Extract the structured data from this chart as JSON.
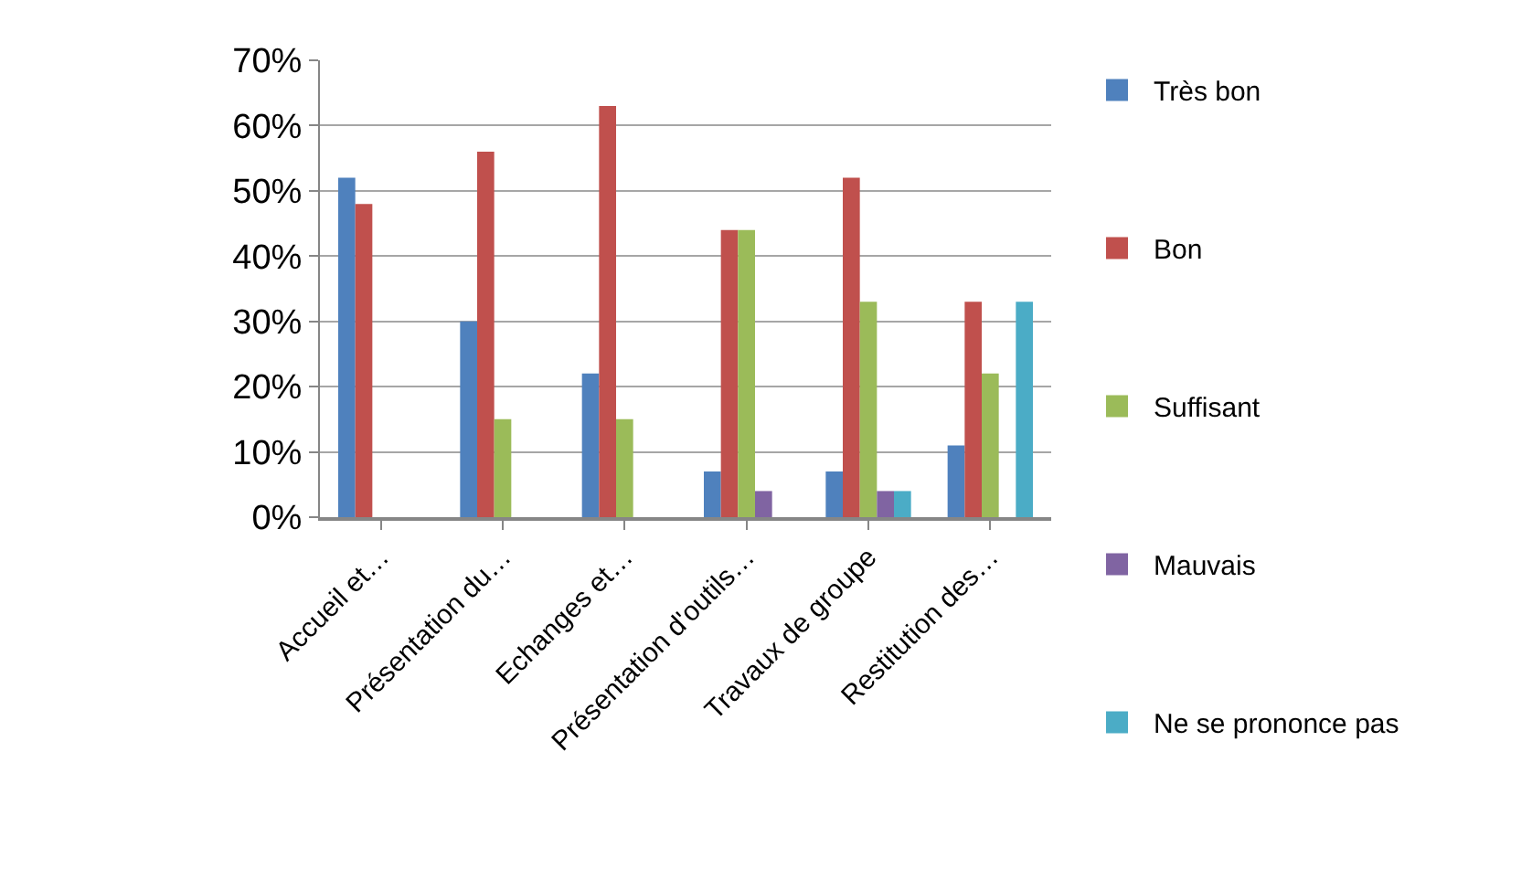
{
  "chart_data": {
    "type": "bar",
    "categories": [
      "Accueil et…",
      "Présentation du…",
      "Echanges et…",
      "Présentation d'outils…",
      "Travaux de groupe",
      "Restitution des…"
    ],
    "series": [
      {
        "name": "Très bon",
        "color": "#4f81bd",
        "values": [
          52,
          30,
          22,
          7,
          7,
          11
        ]
      },
      {
        "name": "Bon",
        "color": "#c0504d",
        "values": [
          48,
          56,
          63,
          44,
          52,
          33
        ]
      },
      {
        "name": "Suffisant",
        "color": "#9bbb59",
        "values": [
          0,
          15,
          15,
          44,
          33,
          22
        ]
      },
      {
        "name": "Mauvais",
        "color": "#8064a2",
        "values": [
          0,
          0,
          0,
          4,
          4,
          0
        ]
      },
      {
        "name": "Ne se prononce pas",
        "color": "#4bacc6",
        "values": [
          0,
          0,
          0,
          0,
          4,
          33
        ]
      }
    ],
    "ylim": [
      0,
      70
    ],
    "yticks": [
      {
        "value": 0,
        "label": "0%"
      },
      {
        "value": 10,
        "label": "10%"
      },
      {
        "value": 20,
        "label": "20%"
      },
      {
        "value": 30,
        "label": "30%"
      },
      {
        "value": 40,
        "label": "40%"
      },
      {
        "value": 50,
        "label": "50%"
      },
      {
        "value": 60,
        "label": "60%"
      },
      {
        "value": 70,
        "label": "70%"
      }
    ],
    "grid": "y",
    "legend": "right"
  }
}
